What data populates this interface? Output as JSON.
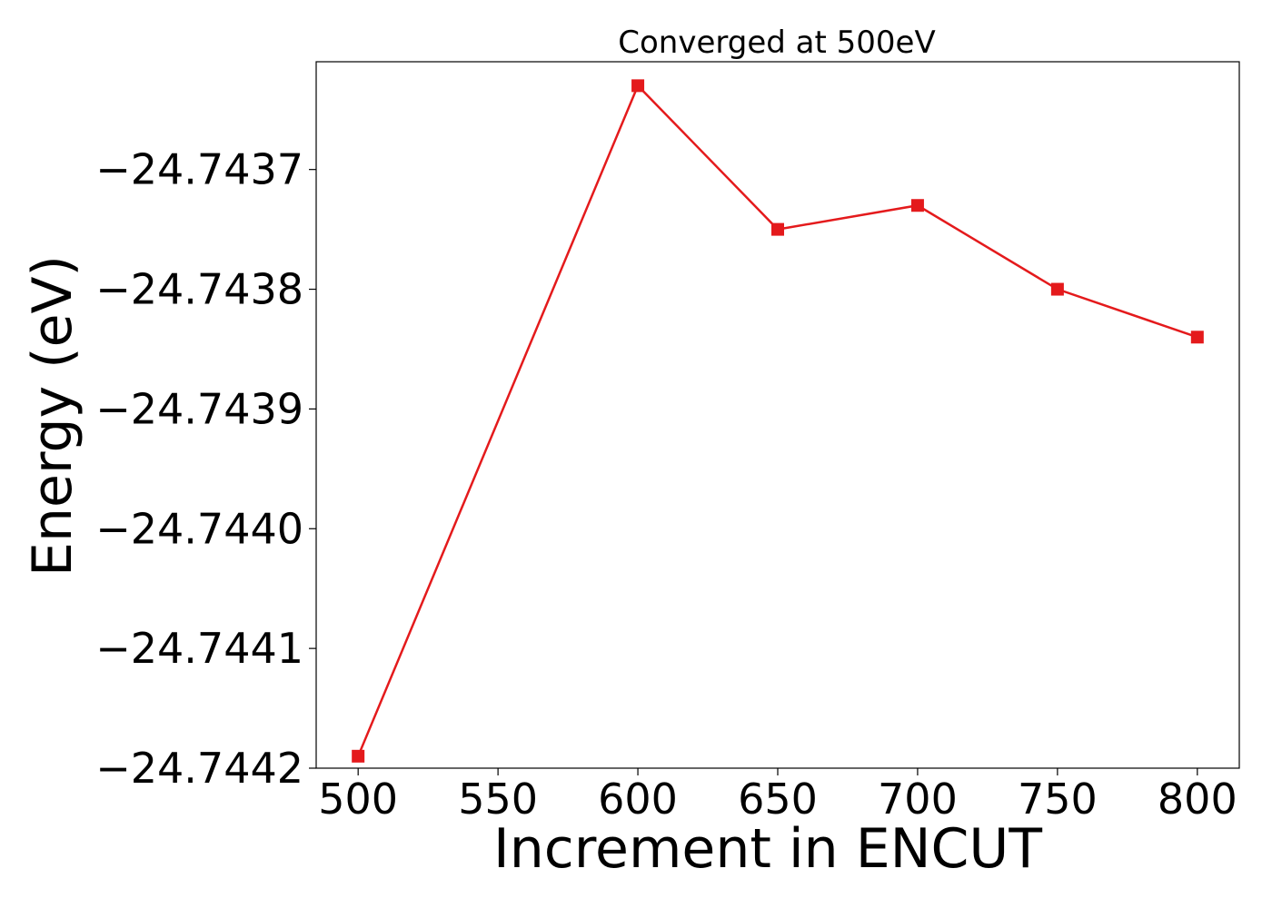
{
  "chart_data": {
    "type": "line",
    "title": "Converged at 500eV",
    "xlabel": "Increment in ENCUT",
    "ylabel": "Energy (eV)",
    "x": [
      500,
      600,
      650,
      700,
      750,
      800
    ],
    "series": [
      {
        "values": [
          -24.74419,
          -24.74363,
          -24.74375,
          -24.74373,
          -24.7438,
          -24.74384
        ],
        "color": "#e41a1c",
        "marker": "square"
      }
    ],
    "xlim": [
      485,
      815
    ],
    "ylim": [
      -24.7442,
      -24.74361
    ],
    "xticks": [
      500,
      550,
      600,
      650,
      700,
      750,
      800
    ],
    "xtick_labels": [
      "500",
      "550",
      "600",
      "650",
      "700",
      "750",
      "800"
    ],
    "yticks": [
      -24.7437,
      -24.7438,
      -24.7439,
      -24.744,
      -24.7441,
      -24.7442
    ],
    "ytick_labels": [
      "−24.7437",
      "−24.7438",
      "−24.7439",
      "−24.7440",
      "−24.7441",
      "−24.7442"
    ],
    "grid": false,
    "legend": false
  }
}
